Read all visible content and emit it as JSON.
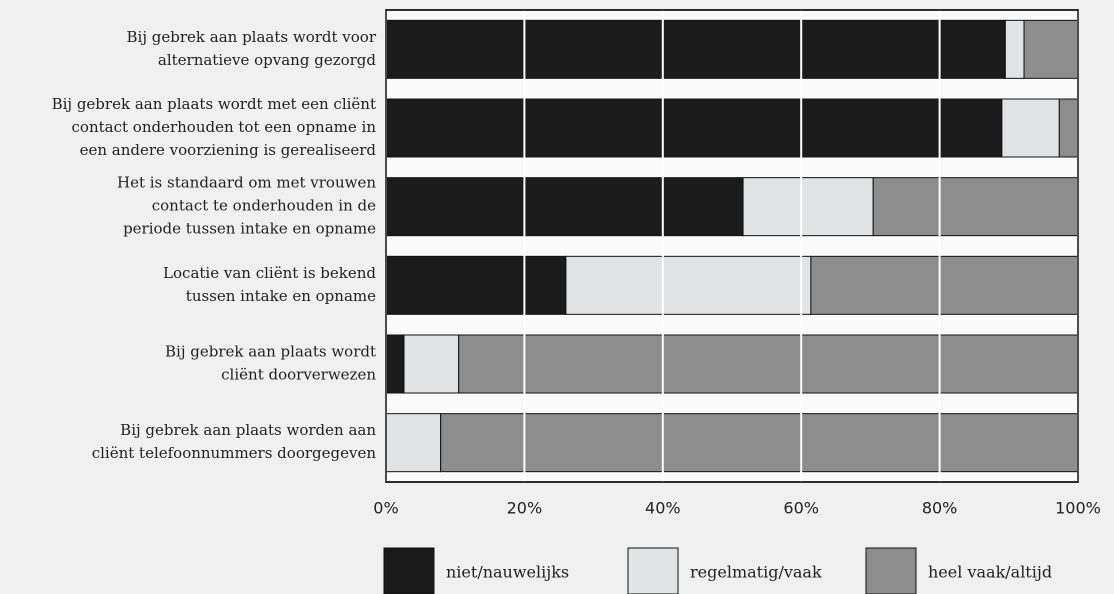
{
  "chart_data": {
    "type": "stacked-barh",
    "categories": [
      [
        "Bij gebrek aan plaats wordt voor",
        "alternatieve opvang gezorgd"
      ],
      [
        "Bij gebrek aan plaats wordt met een cliënt",
        "contact onderhouden tot een opname in",
        "een andere voorziening is gerealiseerd"
      ],
      [
        "Het is standaard om met vrouwen",
        "contact te onderhouden in de",
        "periode tussen intake en opname"
      ],
      [
        "Locatie van cliënt is bekend",
        "tussen intake en opname"
      ],
      [
        "Bij gebrek aan plaats wordt",
        "cliënt doorverwezen"
      ],
      [
        "Bij gebrek aan plaats worden aan",
        "cliënt telefoonnummers doorgegeven"
      ]
    ],
    "series": [
      {
        "name": "niet/nauwelijks",
        "color": "#1b1b1b",
        "values": [
          89.5,
          89.0,
          51.6,
          26.0,
          2.6,
          0
        ]
      },
      {
        "name": "regelmatig/vaak",
        "color": "#e1e3e4",
        "values": [
          2.7,
          8.3,
          18.8,
          35.4,
          7.9,
          7.9
        ]
      },
      {
        "name": "heel vaak/altijd",
        "color": "#8d8d8d",
        "values": [
          7.8,
          2.7,
          29.6,
          38.6,
          89.5,
          92.1
        ]
      }
    ],
    "xlim": [
      0,
      100
    ],
    "xticks": [
      {
        "value": 0,
        "label": "0%"
      },
      {
        "value": 20,
        "label": "20%"
      },
      {
        "value": 40,
        "label": "40%"
      },
      {
        "value": 60,
        "label": "60%"
      },
      {
        "value": 80,
        "label": "80%"
      },
      {
        "value": 100,
        "label": "100%"
      }
    ],
    "grid": true,
    "legend": "bottom"
  }
}
